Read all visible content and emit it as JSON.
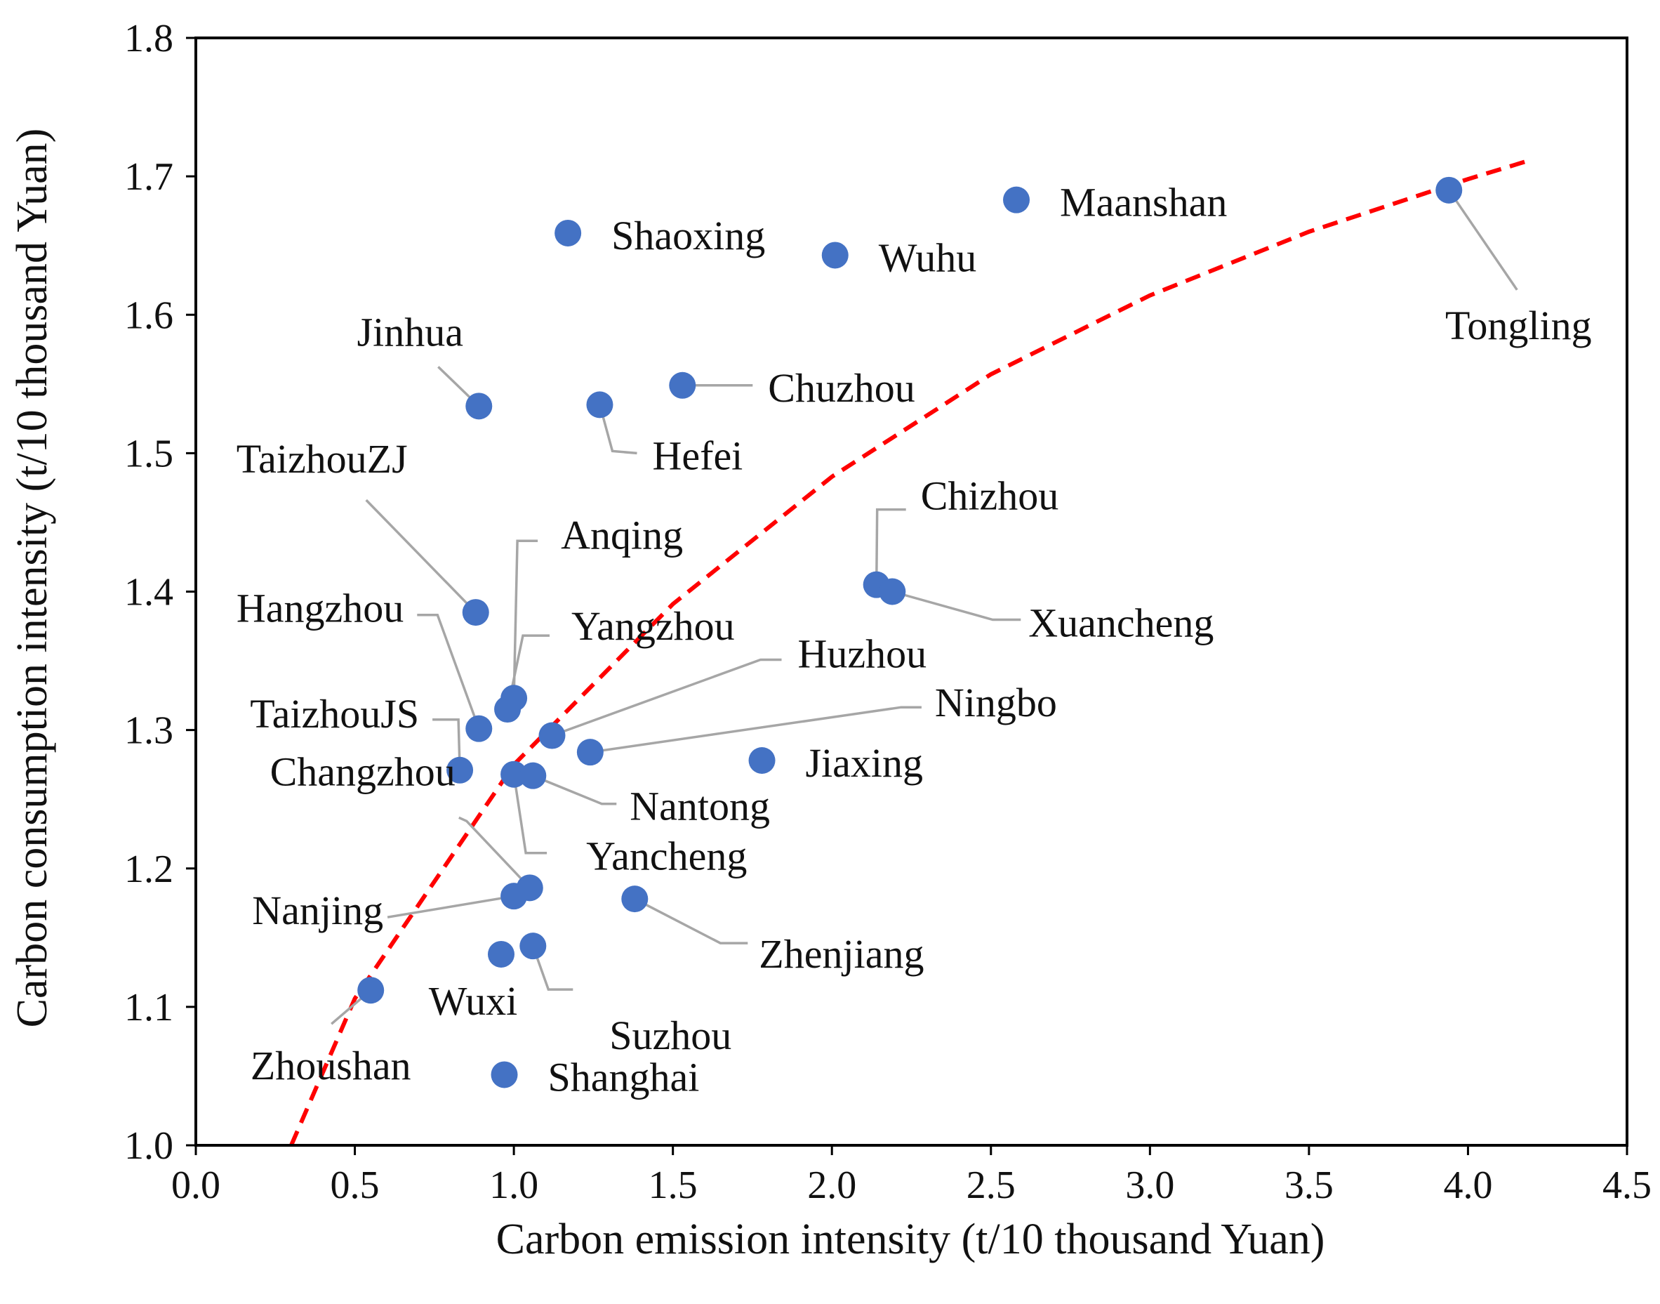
{
  "chart_data": {
    "type": "scatter",
    "title": "",
    "xlabel": "Carbon emission intensity (t/10 thousand Yuan)",
    "ylabel": "Carbon consumption intensity (t/10 thousand Yuan)",
    "xlim": [
      0.0,
      4.5
    ],
    "ylim": [
      1.0,
      1.8
    ],
    "xticks": [
      0.0,
      0.5,
      1.0,
      1.5,
      2.0,
      2.5,
      3.0,
      3.5,
      4.0,
      4.5
    ],
    "yticks": [
      1.0,
      1.1,
      1.2,
      1.3,
      1.4,
      1.5,
      1.6,
      1.7,
      1.8
    ],
    "xtick_labels": [
      "0.0",
      "0.5",
      "1.0",
      "1.5",
      "2.0",
      "2.5",
      "3.0",
      "3.5",
      "4.0",
      "4.5"
    ],
    "ytick_labels": [
      "1.0",
      "1.1",
      "1.2",
      "1.3",
      "1.4",
      "1.5",
      "1.6",
      "1.7",
      "1.8"
    ],
    "grid": false,
    "marker_color": "#4472C4",
    "trend_color": "#FF0000",
    "leader_color": "#A6A6A6",
    "points": [
      {
        "name": "Tongling",
        "x": 3.94,
        "y": 1.69
      },
      {
        "name": "Maanshan",
        "x": 2.58,
        "y": 1.683
      },
      {
        "name": "Wuhu",
        "x": 2.01,
        "y": 1.643
      },
      {
        "name": "Shaoxing",
        "x": 1.17,
        "y": 1.659
      },
      {
        "name": "Chuzhou",
        "x": 1.53,
        "y": 1.549
      },
      {
        "name": "Hefei",
        "x": 1.27,
        "y": 1.535
      },
      {
        "name": "Jinhua",
        "x": 0.89,
        "y": 1.534
      },
      {
        "name": "Chizhou",
        "x": 2.14,
        "y": 1.405
      },
      {
        "name": "Xuancheng",
        "x": 2.19,
        "y": 1.4
      },
      {
        "name": "TaizhouZJ",
        "x": 0.88,
        "y": 1.385
      },
      {
        "name": "Anqing",
        "x": 1.0,
        "y": 1.323
      },
      {
        "name": "Yangzhou",
        "x": 0.98,
        "y": 1.315
      },
      {
        "name": "Hangzhou",
        "x": 0.89,
        "y": 1.301
      },
      {
        "name": "Huzhou",
        "x": 1.12,
        "y": 1.296
      },
      {
        "name": "Ningbo",
        "x": 1.24,
        "y": 1.284
      },
      {
        "name": "Jiaxing",
        "x": 1.78,
        "y": 1.278
      },
      {
        "name": "TaizhouJS",
        "x": 0.83,
        "y": 1.271
      },
      {
        "name": "Yancheng",
        "x": 1.0,
        "y": 1.268
      },
      {
        "name": "Nantong",
        "x": 1.06,
        "y": 1.267
      },
      {
        "name": "Changzhou",
        "x": 1.05,
        "y": 1.186
      },
      {
        "name": "Nanjing",
        "x": 1.0,
        "y": 1.18
      },
      {
        "name": "Zhenjiang",
        "x": 1.38,
        "y": 1.178
      },
      {
        "name": "Suzhou",
        "x": 1.06,
        "y": 1.144
      },
      {
        "name": "Wuxi",
        "x": 0.96,
        "y": 1.138
      },
      {
        "name": "Zhoushan",
        "x": 0.55,
        "y": 1.112
      },
      {
        "name": "Shanghai",
        "x": 0.97,
        "y": 1.051
      }
    ],
    "trendline": {
      "style": "dashed",
      "points": [
        {
          "x": 0.3,
          "y": 1.0
        },
        {
          "x": 0.5,
          "y": 1.106
        },
        {
          "x": 1.0,
          "y": 1.275
        },
        {
          "x": 1.5,
          "y": 1.391
        },
        {
          "x": 2.0,
          "y": 1.483
        },
        {
          "x": 2.5,
          "y": 1.557
        },
        {
          "x": 3.0,
          "y": 1.614
        },
        {
          "x": 3.5,
          "y": 1.66
        },
        {
          "x": 4.0,
          "y": 1.698
        },
        {
          "x": 4.2,
          "y": 1.712
        }
      ]
    }
  }
}
